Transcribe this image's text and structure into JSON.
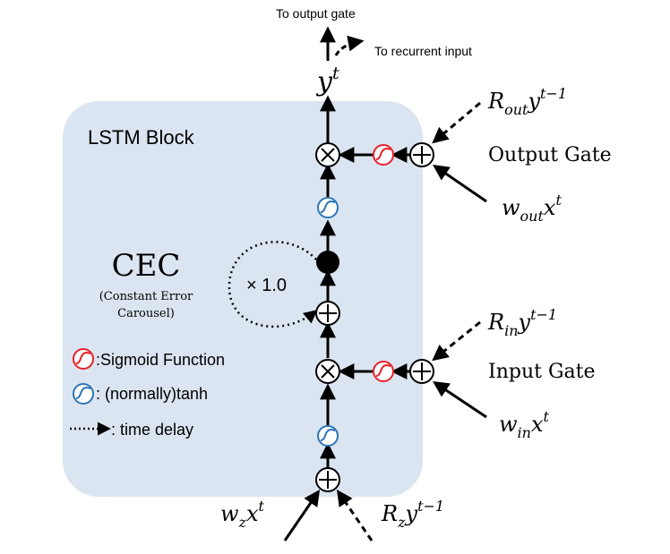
{
  "block": {
    "title": "LSTM Block"
  },
  "top": {
    "output_gate": "To output gate",
    "recurrent_input": "To recurrent input"
  },
  "output": {
    "var": "y",
    "sup": "t"
  },
  "output_gate": {
    "label": "Output Gate",
    "r_main": "R",
    "r_sub": "out",
    "r_var": "y",
    "r_sup": "t−1",
    "w_main": "w",
    "w_sub": "out",
    "w_var": "x",
    "w_sup": "t"
  },
  "input_gate": {
    "label": "Input Gate",
    "r_main": "R",
    "r_sub": "in",
    "r_var": "y",
    "r_sup": "t−1",
    "w_main": "w",
    "w_sub": "in",
    "w_var": "x",
    "w_sup": "t"
  },
  "block_input": {
    "w_main": "w",
    "w_sub": "z",
    "w_var": "x",
    "w_sup": "t",
    "r_main": "R",
    "r_sub": "z",
    "r_var": "y",
    "r_sup": "t−1"
  },
  "cec": {
    "title": "CEC",
    "subtitle_line1": "(Constant Error",
    "subtitle_line2": "Carousel)",
    "weight": "× 1.0"
  },
  "legend": {
    "sigmoid": ":Sigmoid Function",
    "tanh": ": (normally)tanh",
    "delay": ": time delay"
  },
  "colors": {
    "block_fill": "#dbe5f1",
    "sigmoid": "#e8202a",
    "tanh": "#2e75b6",
    "line": "#000000"
  },
  "icons": {
    "sum": "plus-circle-icon",
    "product": "times-circle-icon",
    "sigmoid": "sigmoid-icon",
    "tanh": "tanh-icon",
    "cell": "cell-node-icon"
  }
}
